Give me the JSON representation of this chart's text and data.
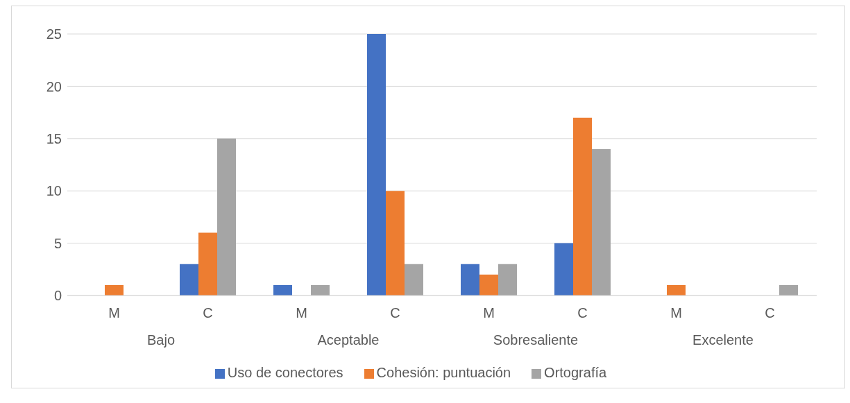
{
  "chart_data": {
    "type": "bar",
    "categories": [
      "M",
      "C",
      "M",
      "C",
      "M",
      "C",
      "M",
      "C"
    ],
    "series": [
      {
        "name": "Uso de conectores",
        "color": "#4472c4",
        "values": [
          0,
          3,
          1,
          25,
          3,
          5,
          0,
          0
        ]
      },
      {
        "name": "Cohesión: puntuación",
        "color": "#ed7d31",
        "values": [
          1,
          6,
          0,
          10,
          2,
          17,
          1,
          0
        ]
      },
      {
        "name": "Ortografía",
        "color": "#a5a5a5",
        "values": [
          0,
          15,
          1,
          3,
          3,
          14,
          0,
          1
        ]
      }
    ],
    "annotations": [
      "Bajo",
      "Aceptable",
      "Sobresaliente",
      "Excelente"
    ],
    "ylim": [
      0,
      25
    ],
    "yticks": [
      0,
      5,
      10,
      15,
      20,
      25
    ],
    "grid": "y",
    "legend": "bottom"
  }
}
